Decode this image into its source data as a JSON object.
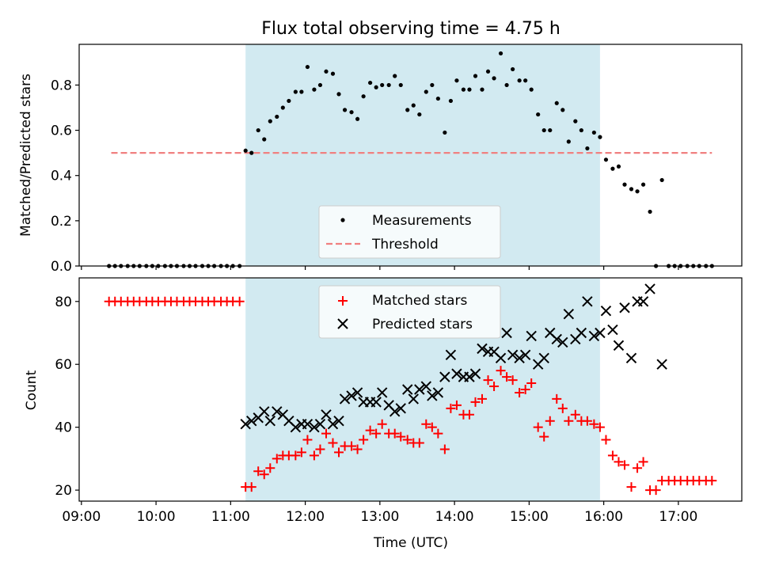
{
  "figure": {
    "title": "Flux total observing time = 4.75 h"
  },
  "colors": {
    "highlight": "#add8e6",
    "threshold": "#f08080",
    "matched": "#ff0000",
    "predicted": "#000000",
    "measurement": "#000000"
  },
  "chart_data": [
    {
      "type": "scatter",
      "ylabel": "Matched/Predicted stars",
      "xlabel": "",
      "x_range_hours": [
        8.97,
        17.85
      ],
      "ylim": [
        0,
        0.98
      ],
      "yticks": [
        0.0,
        0.2,
        0.4,
        0.6,
        0.8
      ],
      "ytick_labels": [
        "0.0",
        "0.2",
        "0.4",
        "0.6",
        "0.8"
      ],
      "highlight_span_hours": [
        11.2,
        15.95
      ],
      "threshold": {
        "value": 0.5,
        "x_start": 9.4,
        "x_end": 17.45
      },
      "legend": {
        "placement": "lower-center",
        "entries": [
          "Measurements",
          "Threshold"
        ]
      },
      "series": [
        {
          "name": "Measurements",
          "marker": "dot",
          "x": [
            9.37,
            9.45,
            9.53,
            9.62,
            9.7,
            9.78,
            9.87,
            9.95,
            10.03,
            10.12,
            10.2,
            10.28,
            10.37,
            10.45,
            10.53,
            10.62,
            10.7,
            10.78,
            10.87,
            10.95,
            11.03,
            11.12,
            11.2,
            11.28,
            11.37,
            11.45,
            11.53,
            11.62,
            11.7,
            11.78,
            11.87,
            11.95,
            12.03,
            12.12,
            12.2,
            12.28,
            12.37,
            12.45,
            12.53,
            12.62,
            12.7,
            12.78,
            12.87,
            12.95,
            13.03,
            13.12,
            13.2,
            13.28,
            13.37,
            13.45,
            13.53,
            13.62,
            13.7,
            13.78,
            13.87,
            13.95,
            14.03,
            14.12,
            14.2,
            14.28,
            14.37,
            14.45,
            14.53,
            14.62,
            14.7,
            14.78,
            14.87,
            14.95,
            15.03,
            15.12,
            15.2,
            15.28,
            15.37,
            15.45,
            15.53,
            15.62,
            15.7,
            15.78,
            15.87,
            15.95,
            16.03,
            16.12,
            16.2,
            16.28,
            16.37,
            16.45,
            16.53,
            16.62,
            16.7,
            16.78,
            16.87,
            16.95,
            17.03,
            17.12,
            17.2,
            17.28,
            17.37,
            17.45
          ],
          "y": [
            0,
            0,
            0,
            0,
            0,
            0,
            0,
            0,
            0,
            0,
            0,
            0,
            0,
            0,
            0,
            0,
            0,
            0,
            0,
            0,
            0,
            0,
            0.51,
            0.5,
            0.6,
            0.56,
            0.64,
            0.66,
            0.7,
            0.73,
            0.77,
            0.77,
            0.88,
            0.78,
            0.8,
            0.86,
            0.85,
            0.76,
            0.69,
            0.68,
            0.65,
            0.75,
            0.81,
            0.79,
            0.8,
            0.8,
            0.84,
            0.8,
            0.69,
            0.71,
            0.67,
            0.77,
            0.8,
            0.74,
            0.59,
            0.73,
            0.82,
            0.78,
            0.78,
            0.84,
            0.78,
            0.86,
            0.83,
            0.94,
            0.8,
            0.87,
            0.82,
            0.82,
            0.78,
            0.67,
            0.6,
            0.6,
            0.72,
            0.69,
            0.55,
            0.64,
            0.6,
            0.52,
            0.59,
            0.57,
            0.47,
            0.43,
            0.44,
            0.36,
            0.34,
            0.33,
            0.36,
            0.24,
            0,
            0.38,
            0,
            0,
            0,
            0,
            0,
            0,
            0,
            0
          ]
        }
      ]
    },
    {
      "type": "scatter",
      "ylabel": "Count",
      "xlabel": "Time (UTC)",
      "x_range_hours": [
        8.97,
        17.85
      ],
      "ylim": [
        16.5,
        87.5
      ],
      "yticks": [
        20,
        40,
        60,
        80
      ],
      "ytick_labels": [
        "20",
        "40",
        "60",
        "80"
      ],
      "xticks_hours": [
        9,
        10,
        11,
        12,
        13,
        14,
        15,
        16,
        17
      ],
      "xtick_labels": [
        "09:00",
        "10:00",
        "11:00",
        "12:00",
        "13:00",
        "14:00",
        "15:00",
        "16:00",
        "17:00"
      ],
      "highlight_span_hours": [
        11.2,
        15.95
      ],
      "legend": {
        "placement": "upper-center",
        "entries": [
          "Matched stars",
          "Predicted stars"
        ]
      },
      "series": [
        {
          "name": "Matched stars",
          "marker": "plus",
          "x": [
            9.37,
            9.45,
            9.53,
            9.62,
            9.7,
            9.78,
            9.87,
            9.95,
            10.03,
            10.12,
            10.2,
            10.28,
            10.37,
            10.45,
            10.53,
            10.62,
            10.7,
            10.78,
            10.87,
            10.95,
            11.03,
            11.12,
            11.2,
            11.28,
            11.37,
            11.45,
            11.53,
            11.62,
            11.7,
            11.78,
            11.87,
            11.95,
            12.03,
            12.12,
            12.2,
            12.28,
            12.37,
            12.45,
            12.53,
            12.62,
            12.7,
            12.78,
            12.87,
            12.95,
            13.03,
            13.12,
            13.2,
            13.28,
            13.37,
            13.45,
            13.53,
            13.62,
            13.7,
            13.78,
            13.87,
            13.95,
            14.03,
            14.12,
            14.2,
            14.28,
            14.37,
            14.45,
            14.53,
            14.62,
            14.7,
            14.78,
            14.87,
            14.95,
            15.03,
            15.12,
            15.2,
            15.28,
            15.37,
            15.45,
            15.53,
            15.62,
            15.7,
            15.78,
            15.87,
            15.95,
            16.03,
            16.12,
            16.2,
            16.28,
            16.37,
            16.45,
            16.53,
            16.62,
            16.7,
            16.78,
            16.87,
            16.95,
            17.03,
            17.12,
            17.2,
            17.28,
            17.37,
            17.45
          ],
          "y": [
            80,
            80,
            80,
            80,
            80,
            80,
            80,
            80,
            80,
            80,
            80,
            80,
            80,
            80,
            80,
            80,
            80,
            80,
            80,
            80,
            80,
            80,
            21,
            21,
            26,
            25,
            27,
            30,
            31,
            31,
            31,
            32,
            36,
            31,
            33,
            38,
            35,
            32,
            34,
            34,
            33,
            36,
            39,
            38,
            41,
            38,
            38,
            37,
            36,
            35,
            35,
            41,
            40,
            38,
            33,
            46,
            47,
            44,
            44,
            48,
            49,
            55,
            53,
            58,
            56,
            55,
            51,
            52,
            54,
            40,
            37,
            42,
            49,
            46,
            42,
            44,
            42,
            42,
            41,
            40,
            36,
            31,
            29,
            28,
            21,
            27,
            29,
            20,
            20,
            23,
            23,
            23,
            23,
            23,
            23,
            23,
            23,
            23
          ]
        },
        {
          "name": "Predicted stars",
          "marker": "x",
          "x": [
            11.2,
            11.28,
            11.37,
            11.45,
            11.53,
            11.62,
            11.7,
            11.78,
            11.87,
            11.95,
            12.03,
            12.12,
            12.2,
            12.28,
            12.37,
            12.45,
            12.53,
            12.62,
            12.7,
            12.78,
            12.87,
            12.95,
            13.03,
            13.12,
            13.2,
            13.28,
            13.37,
            13.45,
            13.53,
            13.62,
            13.7,
            13.78,
            13.87,
            13.95,
            14.03,
            14.12,
            14.2,
            14.28,
            14.37,
            14.45,
            14.53,
            14.62,
            14.7,
            14.78,
            14.87,
            14.95,
            15.03,
            15.12,
            15.2,
            15.28,
            15.37,
            15.45,
            15.53,
            15.62,
            15.7,
            15.78,
            15.87,
            15.95,
            16.03,
            16.12,
            16.2,
            16.28,
            16.37,
            16.45,
            16.53,
            16.62,
            16.78
          ],
          "y": [
            41,
            42,
            43,
            45,
            42,
            45,
            44,
            42,
            40,
            41,
            41,
            40,
            41,
            44,
            41,
            42,
            49,
            50,
            51,
            48,
            48,
            48,
            51,
            47,
            45,
            46,
            52,
            49,
            52,
            53,
            50,
            51,
            56,
            63,
            57,
            56,
            56,
            57,
            65,
            64,
            64,
            62,
            70,
            63,
            62,
            63,
            69,
            60,
            62,
            70,
            68,
            67,
            76,
            68,
            70,
            80,
            69,
            70,
            77,
            71,
            66,
            78,
            62,
            80,
            80,
            84,
            60
          ]
        }
      ]
    }
  ]
}
